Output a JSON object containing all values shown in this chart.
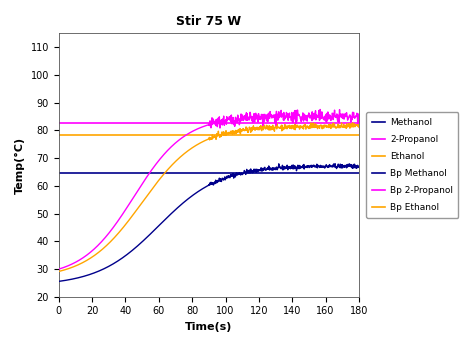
{
  "title": "Stir 75 W",
  "xlabel": "Time(s)",
  "ylabel": "Temp(°C)",
  "xlim": [
    0,
    180
  ],
  "ylim": [
    20,
    115
  ],
  "xticks": [
    0,
    20,
    40,
    60,
    80,
    100,
    120,
    140,
    160,
    180
  ],
  "yticks": [
    20,
    30,
    40,
    50,
    60,
    70,
    80,
    90,
    100,
    110
  ],
  "bp_methanol": 64.7,
  "bp_2propanol": 82.6,
  "bp_ethanol": 78.37,
  "methanol_start": 24.0,
  "methanol_plateau": 67.2,
  "methanol_t_mid": 60,
  "methanol_steepness": 0.055,
  "ethanol_start": 26.5,
  "ethanol_plateau": 81.5,
  "ethanol_t_mid": 50,
  "ethanol_steepness": 0.06,
  "propanol_start": 27.0,
  "propanol_plateau": 85.0,
  "propanol_t_mid": 45,
  "propanol_steepness": 0.065,
  "color_methanol": "#00008B",
  "color_2propanol": "#FF00FF",
  "color_ethanol": "#FFA500",
  "color_bp_methanol": "#00008B",
  "color_bp_2propanol": "#FF00FF",
  "color_bp_ethanol": "#FFA500",
  "linewidth": 1.0,
  "bp_linewidth": 1.2,
  "noise_std_propanol": 1.0,
  "noise_std_methanol": 0.4,
  "noise_start_t": 90,
  "figsize": [
    4.74,
    3.47
  ],
  "dpi": 100,
  "legend_entries": [
    "Methanol",
    "2-Propanol",
    "Ethanol",
    "Bp Methanol",
    "Bp 2-Propanol",
    "Bp Ethanol"
  ],
  "legend_colors": [
    "#00008B",
    "#FF00FF",
    "#FFA500",
    "#00008B",
    "#FF00FF",
    "#FFA500"
  ]
}
